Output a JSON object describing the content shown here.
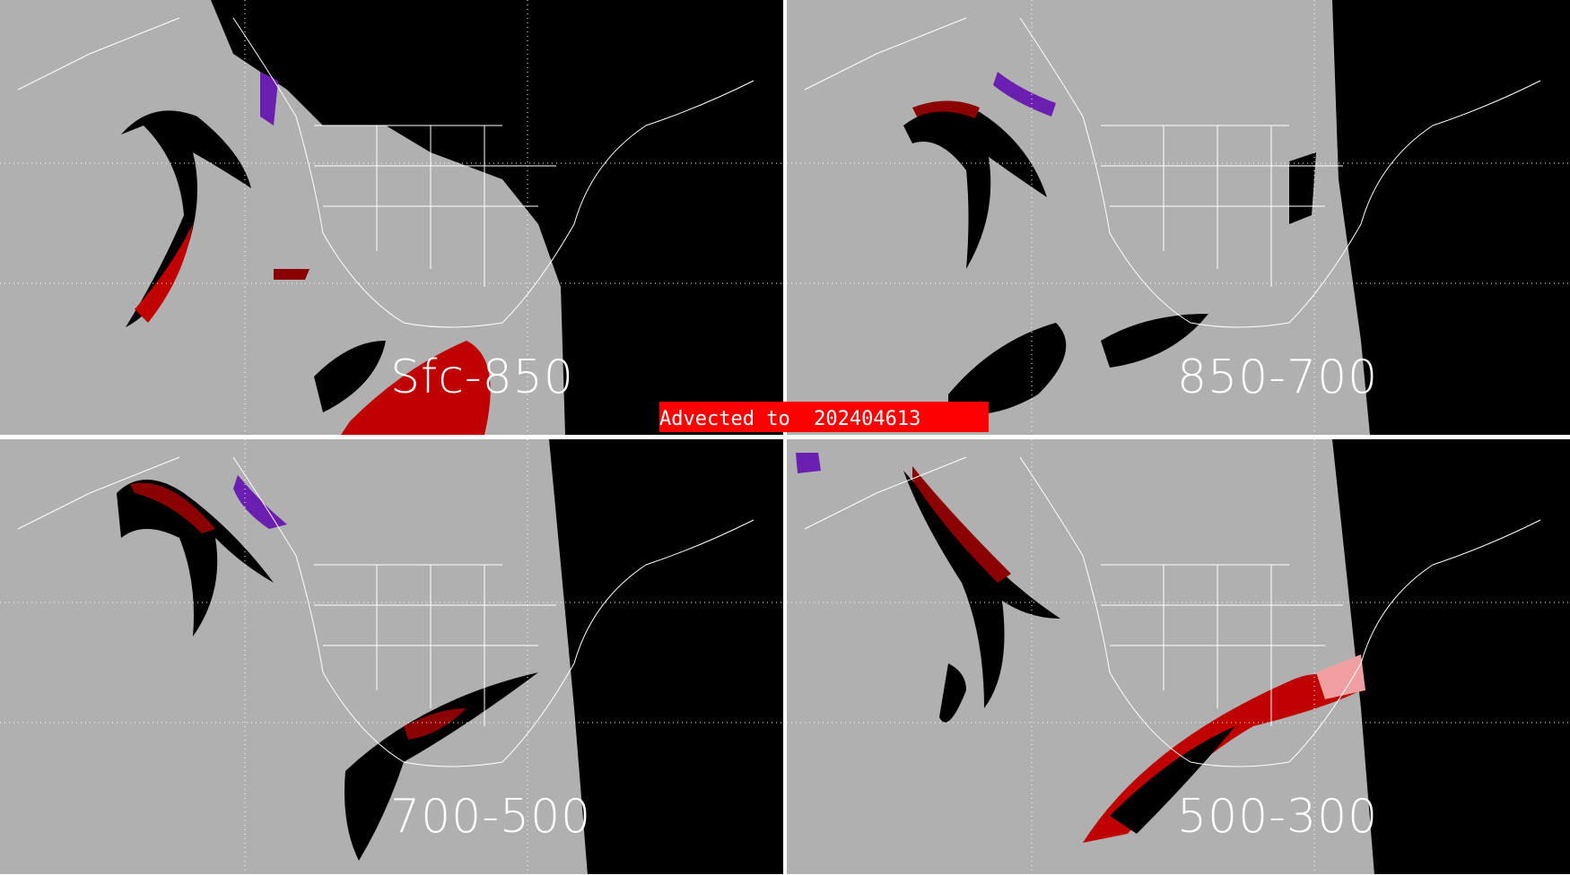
{
  "banner": {
    "text": "Advected to  202404613",
    "color": "#ff0000"
  },
  "panels": [
    {
      "label": "Sfc-850"
    },
    {
      "label": "850-700"
    },
    {
      "label": "700-500"
    },
    {
      "label": "500-300"
    }
  ],
  "colors": {
    "background": "#b0b0b0",
    "night": "#000000",
    "feature_red": "#c00000",
    "feature_darkred": "#8b0000",
    "feature_purple": "#6a1fb0",
    "coastline": "#ffffff"
  }
}
